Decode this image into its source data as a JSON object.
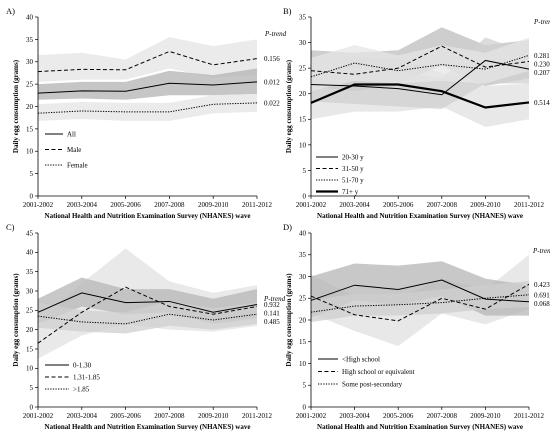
{
  "chart_data": [
    {
      "type": "line",
      "panel_label": "A)",
      "x": [
        "2001-2002",
        "2003-2004",
        "2005-2006",
        "2007-2008",
        "2009-2010",
        "2011-2012"
      ],
      "ylabel": "Daily egg consumption (grams)",
      "xlabel": "National Health and Nutrition Examination Survey (NHANES) wave",
      "ylim": [
        0,
        40
      ],
      "yticks": [
        0,
        5,
        10,
        15,
        20,
        25,
        30,
        35,
        40
      ],
      "ptrend_header": "P-trend",
      "legend_position": "bottom-left",
      "series": [
        {
          "name": "All",
          "style": "solid",
          "width": 1,
          "values": [
            23.0,
            23.5,
            23.4,
            25.2,
            24.8,
            25.5
          ],
          "ci_low": [
            21.5,
            21.8,
            21.5,
            22.5,
            22.5,
            22.8
          ],
          "ci_high": [
            25.0,
            25.5,
            25.5,
            28.0,
            27.0,
            28.5
          ],
          "band_color": "#b3b3b3",
          "p_trend": "0.012"
        },
        {
          "name": "Male",
          "style": "dashed",
          "width": 1,
          "values": [
            27.8,
            28.3,
            28.2,
            32.3,
            29.3,
            30.7
          ],
          "ci_low": [
            25.5,
            26.0,
            26.0,
            28.5,
            26.5,
            27.0
          ],
          "ci_high": [
            31.5,
            32.0,
            30.5,
            35.5,
            33.5,
            35.0
          ],
          "band_color": "#e4e4e4",
          "p_trend": "0.156"
        },
        {
          "name": "Female",
          "style": "dotted",
          "width": 1,
          "values": [
            18.5,
            19.0,
            18.8,
            18.8,
            20.5,
            20.8
          ],
          "ci_low": [
            16.8,
            17.2,
            16.8,
            16.8,
            18.5,
            18.8
          ],
          "ci_high": [
            20.5,
            21.0,
            20.8,
            20.8,
            22.5,
            22.8
          ],
          "band_color": "#e4e4e4",
          "p_trend": "0.022"
        }
      ]
    },
    {
      "type": "line",
      "panel_label": "B)",
      "x": [
        "2001-2002",
        "2003-2004",
        "2005-2006",
        "2007-2008",
        "2009-2010",
        "2011-2012"
      ],
      "ylabel": "Daily egg consumption (grams)",
      "xlabel": "National Health and Nutrition Examination Survey (NHANES) wave",
      "ylim": [
        0,
        35
      ],
      "yticks": [
        0,
        5,
        10,
        15,
        20,
        25,
        30,
        35
      ],
      "ptrend_header": "P-trend",
      "legend_position": "bottom-left",
      "series": [
        {
          "name": "20-30 y",
          "style": "solid",
          "width": 1,
          "values": [
            21.8,
            21.5,
            21.0,
            19.8,
            26.5,
            24.8
          ],
          "ci_low": [
            18.5,
            18.0,
            17.5,
            17.0,
            22.0,
            22.0
          ],
          "ci_high": [
            25.5,
            25.0,
            24.5,
            23.0,
            31.0,
            28.0
          ],
          "band_color": "#d0d0d0",
          "p_trend": "0.207"
        },
        {
          "name": "31-50 y",
          "style": "dashed",
          "width": 1,
          "values": [
            24.5,
            23.8,
            25.0,
            29.3,
            25.2,
            26.3
          ],
          "ci_low": [
            21.5,
            20.5,
            22.0,
            25.5,
            21.5,
            23.0
          ],
          "ci_high": [
            28.5,
            28.0,
            28.5,
            33.0,
            29.5,
            30.5
          ],
          "band_color": "#bdbdbd",
          "p_trend": "0.230"
        },
        {
          "name": "51-70 y",
          "style": "dotted",
          "width": 1,
          "values": [
            23.3,
            26.0,
            24.5,
            25.7,
            24.8,
            27.5
          ],
          "ci_low": [
            20.5,
            22.5,
            22.0,
            22.5,
            22.0,
            24.5
          ],
          "ci_high": [
            27.0,
            29.5,
            27.5,
            29.5,
            28.0,
            31.0
          ],
          "band_color": "#e6e6e6",
          "p_trend": "0.281"
        },
        {
          "name": "71+ y",
          "style": "solid",
          "width": 2.2,
          "values": [
            18.2,
            21.8,
            21.8,
            20.5,
            17.3,
            18.3
          ],
          "ci_low": [
            15.0,
            16.5,
            16.5,
            17.5,
            13.5,
            15.0
          ],
          "ci_high": [
            21.5,
            27.0,
            27.0,
            24.0,
            21.5,
            22.0
          ],
          "band_color": "#e0e0e0",
          "p_trend": "0.514"
        }
      ]
    },
    {
      "type": "line",
      "panel_label": "C)",
      "x": [
        "2001-2002",
        "2003-2004",
        "2005-2006",
        "2007-2008",
        "2009-2010",
        "2011-2012"
      ],
      "ylabel": "Daily egg consumption (grams)",
      "xlabel": "National Health and Nutrition Examination Survey (NHANES) wave",
      "ylim": [
        0,
        45
      ],
      "yticks": [
        0,
        5,
        10,
        15,
        20,
        25,
        30,
        35,
        40,
        45
      ],
      "ptrend_header": "P-trend",
      "legend_position": "bottom-left",
      "series": [
        {
          "name": "0-1.30",
          "style": "solid",
          "width": 1,
          "values": [
            24.5,
            29.5,
            27.0,
            27.3,
            24.5,
            26.5
          ],
          "ci_low": [
            21.5,
            26.0,
            24.0,
            24.5,
            21.5,
            23.0
          ],
          "ci_high": [
            28.0,
            33.5,
            30.5,
            30.5,
            28.0,
            30.5
          ],
          "band_color": "#b5b5b5",
          "p_trend": "0.932"
        },
        {
          "name": "1.31-1.85",
          "style": "dashed",
          "width": 1,
          "values": [
            16.5,
            24.5,
            31.0,
            26.0,
            24.0,
            26.0
          ],
          "ci_low": [
            12.5,
            18.5,
            21.5,
            20.0,
            19.5,
            21.0
          ],
          "ci_high": [
            21.0,
            32.0,
            41.0,
            32.5,
            29.5,
            31.5
          ],
          "band_color": "#e2e2e2",
          "p_trend": "0.141"
        },
        {
          "name": ">1.85",
          "style": "dotted",
          "width": 1,
          "values": [
            23.5,
            22.0,
            21.5,
            24.0,
            22.5,
            24.0
          ],
          "ci_low": [
            20.5,
            19.5,
            19.0,
            21.0,
            20.0,
            21.5
          ],
          "ci_high": [
            27.0,
            25.0,
            24.5,
            27.5,
            25.5,
            27.0
          ],
          "band_color": "#cfcfcf",
          "p_trend": "0.485"
        }
      ]
    },
    {
      "type": "line",
      "panel_label": "D)",
      "x": [
        "2001-2002",
        "2003-2004",
        "2005-2006",
        "2007-2008",
        "2009-2010",
        "2011-2012"
      ],
      "ylabel": "Daily egg consumption (grams)",
      "xlabel": "National Health and Nutrition Examination Survey (NHANES) wave",
      "ylim": [
        0,
        40
      ],
      "yticks": [
        0,
        5,
        10,
        15,
        20,
        25,
        30,
        35,
        40
      ],
      "ptrend_header": "P-trend",
      "legend_position": "bottom-left",
      "series": [
        {
          "name": "<High school",
          "style": "solid",
          "width": 1,
          "values": [
            24.5,
            28.0,
            27.0,
            29.2,
            24.8,
            24.2
          ],
          "ci_low": [
            20.5,
            24.5,
            23.5,
            25.5,
            21.0,
            21.0
          ],
          "ci_high": [
            30.0,
            33.0,
            32.5,
            33.5,
            29.5,
            28.0
          ],
          "band_color": "#b5b5b5",
          "p_trend": "0.068"
        },
        {
          "name": "High school or equivalent",
          "style": "dashed",
          "width": 1,
          "values": [
            25.5,
            21.2,
            19.8,
            25.0,
            22.5,
            28.2
          ],
          "ci_low": [
            21.5,
            17.5,
            14.0,
            21.5,
            19.0,
            22.5
          ],
          "ci_high": [
            30.5,
            25.5,
            25.0,
            29.5,
            27.0,
            35.0
          ],
          "band_color": "#e0e0e0",
          "p_trend": "0.423"
        },
        {
          "name": "Some post-secondary",
          "style": "dotted",
          "width": 1,
          "values": [
            21.8,
            23.2,
            23.5,
            24.0,
            25.0,
            25.8
          ],
          "ci_low": [
            19.5,
            21.0,
            21.0,
            21.5,
            22.5,
            23.0
          ],
          "ci_high": [
            24.5,
            26.0,
            26.0,
            27.0,
            28.0,
            29.0
          ],
          "band_color": "#cfcfcf",
          "p_trend": "0.691"
        }
      ]
    }
  ]
}
